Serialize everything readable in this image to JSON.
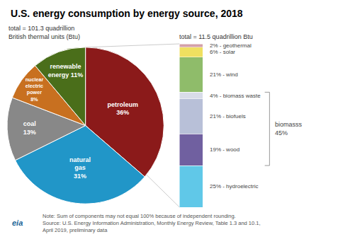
{
  "chart_data": [
    {
      "type": "pie",
      "title": "U.S. energy consumption by energy source, 2018",
      "subtitle": "total = 101.3 quadrillion\nBritish thermal units (Btu)",
      "categories": [
        "petroleum\n36%",
        "natural\ngas\n31%",
        "coal\n13%",
        "nuclear\nelectric\npower\n8%",
        "renewable\nenergy 11%"
      ],
      "values": [
        36,
        31,
        13,
        8,
        11
      ],
      "colors": [
        "#8b1a1a",
        "#2196c8",
        "#888888",
        "#c87020",
        "#4a6e1a"
      ],
      "data_labels": true,
      "notes": [
        "Note: Sum of components may not equal 100% because of independent rounding.",
        "Source: U.S. Energy Information Administration, Monthly Energy Review, Table 1.3 and 10.1,",
        "April 2019, preliminary data"
      ],
      "logo": "eia"
    },
    {
      "type": "bar",
      "stacked": true,
      "subtitle": "total = 11.5 quadrillion Btu",
      "categories": [
        null
      ],
      "ylim": [
        0,
        98
      ],
      "tick_labels": false,
      "grid": false,
      "data_labels": true,
      "series": [
        {
          "name": "hydroelectric",
          "color": "#60c8e8",
          "values": [
            25
          ],
          "value_labels": [
            "25% - hydroelectric"
          ]
        },
        {
          "name": "wood",
          "color": "#7060a0",
          "values": [
            19
          ],
          "value_labels": [
            "19% - wood"
          ]
        },
        {
          "name": "biofuels",
          "color": "#b8c0d8",
          "values": [
            21
          ],
          "value_labels": [
            "21% - biofuels"
          ]
        },
        {
          "name": "biomass waste",
          "color": "#d8dce8",
          "values": [
            4
          ],
          "value_labels": [
            "4% - biomass waste"
          ]
        },
        {
          "name": "wind",
          "color": "#8fbc6a",
          "values": [
            21
          ],
          "value_labels": [
            "21% - wind"
          ]
        },
        {
          "name": "solar",
          "color": "#f0e060",
          "values": [
            6
          ],
          "value_labels": [
            "6% - solar"
          ]
        },
        {
          "name": "geothermal",
          "color": "#d4a0a8",
          "values": [
            2
          ],
          "value_labels": [
            "2% - geothermal"
          ]
        }
      ],
      "annotations": [
        {
          "text": "biomasss\n45%",
          "covers": [
            "biomass waste",
            "biofuels",
            "wood"
          ]
        }
      ]
    }
  ]
}
